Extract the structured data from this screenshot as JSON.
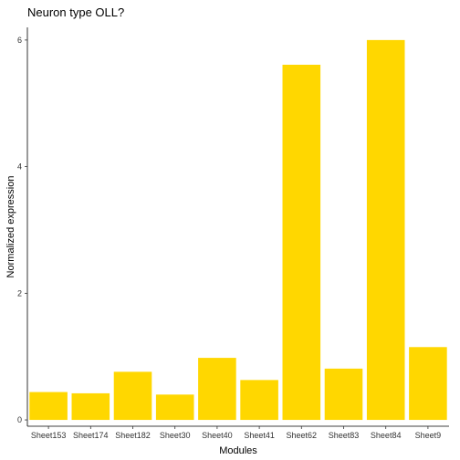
{
  "chart_data": {
    "type": "bar",
    "title": "Neuron type OLL?",
    "xlabel": "Modules",
    "ylabel": "Normalized expression",
    "categories": [
      "Sheet153",
      "Sheet174",
      "Sheet182",
      "Sheet30",
      "Sheet40",
      "Sheet41",
      "Sheet62",
      "Sheet83",
      "Sheet84",
      "Sheet9"
    ],
    "values": [
      0.44,
      0.42,
      0.76,
      0.4,
      0.98,
      0.63,
      5.61,
      0.81,
      6.0,
      1.15
    ],
    "ylim": [
      -0.1,
      6.2
    ],
    "yticks": [
      0,
      2,
      4,
      6
    ],
    "bar_color": "#FFD700",
    "grid": false,
    "legend": "none"
  }
}
